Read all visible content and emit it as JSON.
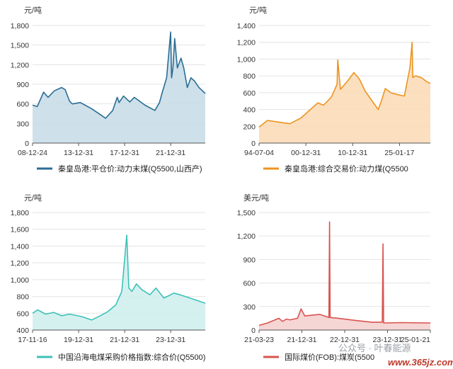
{
  "chart_data": [
    {
      "type": "area",
      "unit": "元/吨",
      "legend": "秦皇岛港:平仓价:动力末煤(Q5500,山西产)",
      "color": "#2a6d94",
      "fill": "#c6dbe6",
      "ylim": [
        0,
        1800
      ],
      "yticks": [
        "0",
        "300",
        "600",
        "900",
        "1,200",
        "1,500",
        "1,800"
      ],
      "xticks": [
        "08-12-24",
        "13-12-31",
        "17-12-31",
        "21-12-31"
      ],
      "xlim": [
        "2008-12-24",
        "2024-12-31"
      ],
      "x": [
        "2008-12-24",
        "2009-06-01",
        "2010-01-01",
        "2010-06-01",
        "2011-01-01",
        "2011-09-01",
        "2012-01-01",
        "2012-06-01",
        "2012-09-01",
        "2013-06-01",
        "2014-06-01",
        "2015-06-01",
        "2015-10-01",
        "2016-06-01",
        "2016-11-01",
        "2017-01-01",
        "2017-06-01",
        "2018-01-01",
        "2018-06-01",
        "2019-06-01",
        "2020-05-01",
        "2020-10-01",
        "2021-01-01",
        "2021-06-01",
        "2021-10-15",
        "2021-11-15",
        "2022-01-01",
        "2022-03-01",
        "2022-06-01",
        "2022-10-01",
        "2023-01-01",
        "2023-05-01",
        "2023-09-01",
        "2024-01-01",
        "2024-06-01",
        "2024-12-31"
      ],
      "y": [
        580,
        560,
        780,
        700,
        800,
        850,
        820,
        640,
        600,
        620,
        530,
        420,
        380,
        500,
        700,
        620,
        720,
        630,
        700,
        580,
        500,
        620,
        770,
        1000,
        1700,
        1000,
        1150,
        1600,
        1150,
        1300,
        1150,
        850,
        1000,
        950,
        850,
        760
      ]
    },
    {
      "type": "area",
      "unit": "元/吨",
      "legend": "秦皇岛港:综合交易价:动力煤(Q5500",
      "color": "#ec9420",
      "fill": "#fbd9b4",
      "ylim": [
        0,
        1400
      ],
      "yticks": [
        "0",
        "200",
        "400",
        "600",
        "800",
        "1,000",
        "1,200",
        "1,400"
      ],
      "xticks": [
        "94-07-04",
        "00-12-31",
        "10-12-31",
        "25-01-17"
      ],
      "xlim": [
        "1994-07-04",
        "2025-01-17"
      ],
      "x": [
        "1994-07-04",
        "1996-01-01",
        "1998-01-01",
        "2000-01-01",
        "2002-01-01",
        "2004-01-01",
        "2005-01-01",
        "2006-01-01",
        "2007-06-01",
        "2008-06-01",
        "2008-07-15",
        "2009-01-01",
        "2010-06-01",
        "2011-06-01",
        "2012-06-01",
        "2013-06-01",
        "2015-10-01",
        "2016-06-01",
        "2017-01-01",
        "2018-01-01",
        "2019-01-01",
        "2020-06-01",
        "2021-06-01",
        "2021-10-15",
        "2021-12-01",
        "2022-06-01",
        "2023-06-01",
        "2024-06-01",
        "2025-01-17"
      ],
      "y": [
        190,
        270,
        250,
        230,
        300,
        420,
        480,
        450,
        550,
        700,
        990,
        640,
        750,
        840,
        760,
        620,
        400,
        520,
        650,
        600,
        580,
        560,
        900,
        1200,
        780,
        800,
        780,
        730,
        710
      ]
    },
    {
      "type": "area",
      "unit": "元/吨",
      "legend": "中国沿海电煤采购价格指数:综合价(Q5500)",
      "color": "#3ec1b8",
      "fill": "#cdeeed",
      "ylim": [
        400,
        1800
      ],
      "yticks": [
        "400",
        "600",
        "800",
        "1,000",
        "1,200",
        "1,400",
        "1,600",
        "1,800"
      ],
      "xticks": [
        "17-11-16",
        "19-12-31",
        "21-12-31",
        "23-12-31"
      ],
      "xlim": [
        "2017-11-16",
        "2025-01-17"
      ],
      "x": [
        "2017-11-16",
        "2018-02-01",
        "2018-06-01",
        "2018-10-01",
        "2019-02-01",
        "2019-06-01",
        "2019-12-01",
        "2020-05-01",
        "2020-10-01",
        "2021-01-01",
        "2021-05-01",
        "2021-08-01",
        "2021-10-15",
        "2021-11-15",
        "2022-01-01",
        "2022-03-10",
        "2022-06-01",
        "2022-10-01",
        "2023-01-01",
        "2023-05-01",
        "2023-10-01",
        "2024-01-01",
        "2024-06-01",
        "2025-01-17"
      ],
      "y": [
        600,
        640,
        590,
        610,
        570,
        590,
        560,
        520,
        580,
        620,
        700,
        860,
        1530,
        900,
        860,
        950,
        880,
        820,
        900,
        780,
        840,
        820,
        780,
        720
      ]
    },
    {
      "type": "area",
      "unit": "美元/吨",
      "legend": "国际煤价(FOB):煤炭(5500",
      "color": "#d9534f",
      "fill": "#f5cece",
      "ylim": [
        0,
        1500
      ],
      "yticks": [
        "0",
        "300",
        "600",
        "900",
        "1,200",
        "1,500"
      ],
      "xticks": [
        "21-03-23",
        "21-12-31",
        "22-12-31",
        "23-12-31",
        "25-01-21"
      ],
      "xlim": [
        "2021-03-23",
        "2025-01-21"
      ],
      "x": [
        "2021-03-23",
        "2021-06-01",
        "2021-09-01",
        "2021-10-01",
        "2021-11-01",
        "2021-12-01",
        "2022-02-01",
        "2022-03-01",
        "2022-04-01",
        "2022-08-01",
        "2022-10-15",
        "2022-10-20",
        "2022-10-25",
        "2023-01-01",
        "2023-06-01",
        "2023-10-01",
        "2023-12-25",
        "2023-12-31",
        "2024-01-05",
        "2024-06-01",
        "2025-01-21"
      ],
      "y": [
        60,
        90,
        150,
        110,
        140,
        130,
        150,
        270,
        180,
        200,
        160,
        1380,
        160,
        150,
        120,
        100,
        100,
        1100,
        90,
        95,
        90
      ]
    }
  ],
  "watermark": {
    "text": "公众号 · 叶春能源",
    "url": "www.365jz.com"
  }
}
